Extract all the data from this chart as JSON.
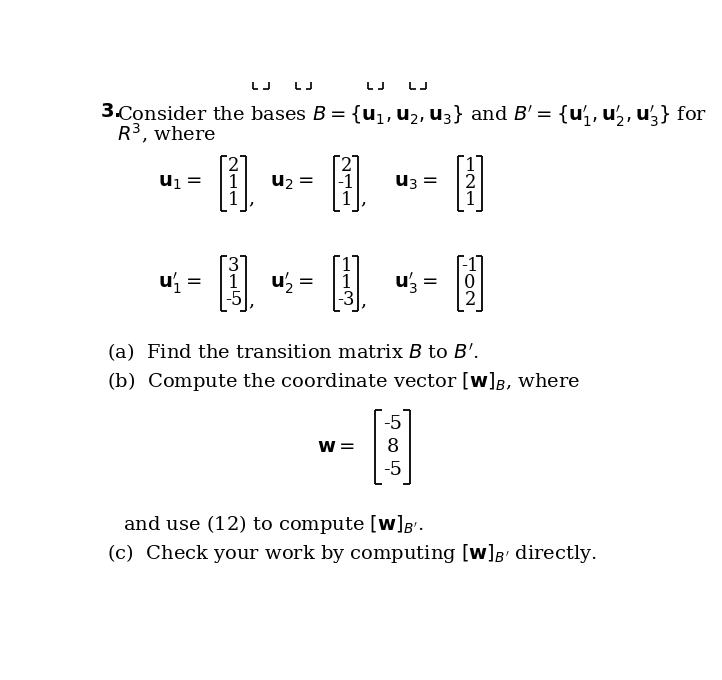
{
  "background_color": "#ffffff",
  "u1": [
    "2",
    "1",
    "1"
  ],
  "u2": [
    "2",
    "-1",
    "1"
  ],
  "u3": [
    "1",
    "2",
    "1"
  ],
  "u1p": [
    "3",
    "1",
    "-5"
  ],
  "u2p": [
    "1",
    "1",
    "-3"
  ],
  "u3p": [
    "-1",
    "0",
    "2"
  ],
  "w": [
    "-5",
    "8",
    "-5"
  ],
  "font_size_main": 14,
  "font_size_vec": 13,
  "font_size_w": 14
}
